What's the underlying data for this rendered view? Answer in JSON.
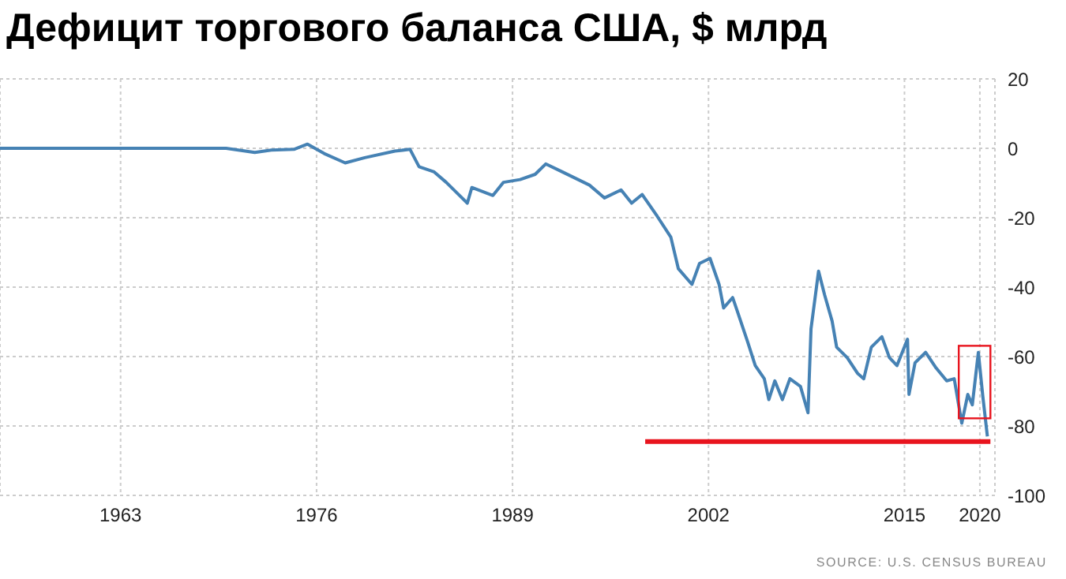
{
  "chart_data": {
    "type": "line",
    "title": "Дефицит торгового баланса США, $ млрд",
    "annotations": [
      "SOURCE: U.S. CENSUS BUREAU"
    ],
    "series": [
      {
        "color": "#4682b4",
        "x": [
          1955,
          1958,
          1961,
          1964,
          1967,
          1970,
          1971.9,
          1973,
          1974.5,
          1975.4,
          1976.5,
          1977.9,
          1979.2,
          1981.2,
          1982.2,
          1982.8,
          1983.8,
          1984.6,
          1986.0,
          1986.3,
          1987.7,
          1988.4,
          1989.5,
          1990.5,
          1991.2,
          1992.3,
          1994.1,
          1995.1,
          1996.2,
          1996.9,
          1997.6,
          1998.6,
          1999.5,
          2000,
          2000.9,
          2001.4,
          2002.1,
          2002.7,
          2003,
          2003.6,
          2003.9,
          2004.6,
          2005.1,
          2005.7,
          2006,
          2006.4,
          2006.9,
          2007.4,
          2008.1,
          2008.6,
          2008.8,
          2009.3,
          2009.7,
          2010.2,
          2010.5,
          2011.2,
          2011.9,
          2012.3,
          2012.8,
          2013.5,
          2014,
          2014.5,
          2015.2,
          2015.3,
          2015.7,
          2016.4,
          2017.1,
          2017.8,
          2018.3,
          2018.8,
          2019.2,
          2019.5,
          2019.9,
          2020.2,
          2020.5
        ],
        "values": [
          0,
          0,
          0,
          0,
          0,
          0,
          -1.2,
          -0.5,
          -0.3,
          1.2,
          -1.5,
          -4.2,
          -2.7,
          -0.8,
          -0.3,
          -5.3,
          -6.8,
          -9.8,
          -15.8,
          -11.3,
          -13.6,
          -9.8,
          -9,
          -7.5,
          -4.5,
          -6.8,
          -10.6,
          -14.3,
          -12,
          -15.8,
          -13.3,
          -19.6,
          -25.6,
          -34.7,
          -39.2,
          -33.2,
          -31.7,
          -39.2,
          -46,
          -43,
          -46.8,
          -55.8,
          -62.6,
          -66.4,
          -72.4,
          -67,
          -72.4,
          -66.4,
          -68.6,
          -76.2,
          -52,
          -35.4,
          -42.2,
          -49.8,
          -57.3,
          -60.3,
          -64.9,
          -66.4,
          -57.3,
          -54.3,
          -60.3,
          -62.6,
          -55,
          -70.9,
          -61.8,
          -58.8,
          -63.3,
          -67,
          -66.4,
          -79.2,
          -70.9,
          -73.9,
          -58.8,
          -71.6,
          -83
        ]
      },
      {
        "color": "#e8141e",
        "x": [
          1997.8,
          2020.7
        ],
        "values": [
          -84.5,
          -84.5
        ]
      }
    ],
    "xlim": [
      1955,
      2021
    ],
    "xticks": [
      1963,
      1976,
      1989,
      2002,
      2015,
      2020
    ],
    "ylim": [
      -100,
      20
    ],
    "yticks": [
      -100,
      -80,
      -60,
      -40,
      -20,
      0,
      20
    ],
    "grid": true,
    "marker": "none",
    "line_style": "solid"
  }
}
